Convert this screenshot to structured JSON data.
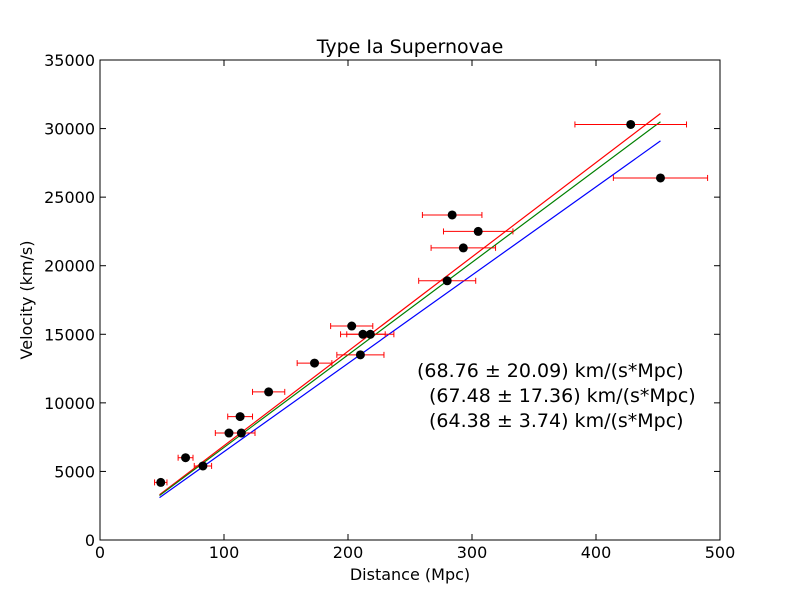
{
  "chart_data": {
    "type": "scatter",
    "title": "Type Ia Supernovae",
    "xlabel": "Distance (Mpc)",
    "ylabel": "Velocity (km/s)",
    "xlim": [
      0,
      500
    ],
    "ylim": [
      0,
      35000
    ],
    "xticks": [
      0,
      100,
      200,
      300,
      400,
      500
    ],
    "yticks": [
      0,
      5000,
      10000,
      15000,
      20000,
      25000,
      30000,
      35000
    ],
    "grid": false,
    "colors": {
      "points": "#000000",
      "errorbars": "#ff0000",
      "fit_red": "#ff0000",
      "fit_green": "#008000",
      "fit_blue": "#0000ff"
    },
    "points": [
      {
        "x": 49,
        "y": 4200,
        "xerr": 5
      },
      {
        "x": 69,
        "y": 6000,
        "xerr": 6
      },
      {
        "x": 83,
        "y": 5400,
        "xerr": 7
      },
      {
        "x": 104,
        "y": 7800,
        "xerr": 11
      },
      {
        "x": 113,
        "y": 9000,
        "xerr": 10
      },
      {
        "x": 114,
        "y": 7800,
        "xerr": 11
      },
      {
        "x": 136,
        "y": 10800,
        "xerr": 13
      },
      {
        "x": 173,
        "y": 12900,
        "xerr": 14
      },
      {
        "x": 203,
        "y": 15600,
        "xerr": 17
      },
      {
        "x": 210,
        "y": 13500,
        "xerr": 19
      },
      {
        "x": 212,
        "y": 15000,
        "xerr": 18
      },
      {
        "x": 218,
        "y": 15000,
        "xerr": 19
      },
      {
        "x": 280,
        "y": 18900,
        "xerr": 23
      },
      {
        "x": 284,
        "y": 23700,
        "xerr": 24
      },
      {
        "x": 293,
        "y": 21300,
        "xerr": 26
      },
      {
        "x": 305,
        "y": 22500,
        "xerr": 28
      },
      {
        "x": 428,
        "y": 30300,
        "xerr": 45
      },
      {
        "x": 452,
        "y": 26400,
        "xerr": 38
      }
    ],
    "fit_lines": [
      {
        "color": "#ff0000",
        "x": [
          48,
          452
        ],
        "y": [
          3300,
          31100
        ]
      },
      {
        "color": "#008000",
        "x": [
          48,
          452
        ],
        "y": [
          3240,
          30500
        ]
      },
      {
        "color": "#0000ff",
        "x": [
          48,
          452
        ],
        "y": [
          3090,
          29100
        ]
      }
    ],
    "annotations": [
      "(68.76 ± 20.09) km/(s*Mpc)",
      "(67.48 ± 17.36) km/(s*Mpc)",
      "(64.38 ± 3.74) km/(s*Mpc)"
    ]
  }
}
